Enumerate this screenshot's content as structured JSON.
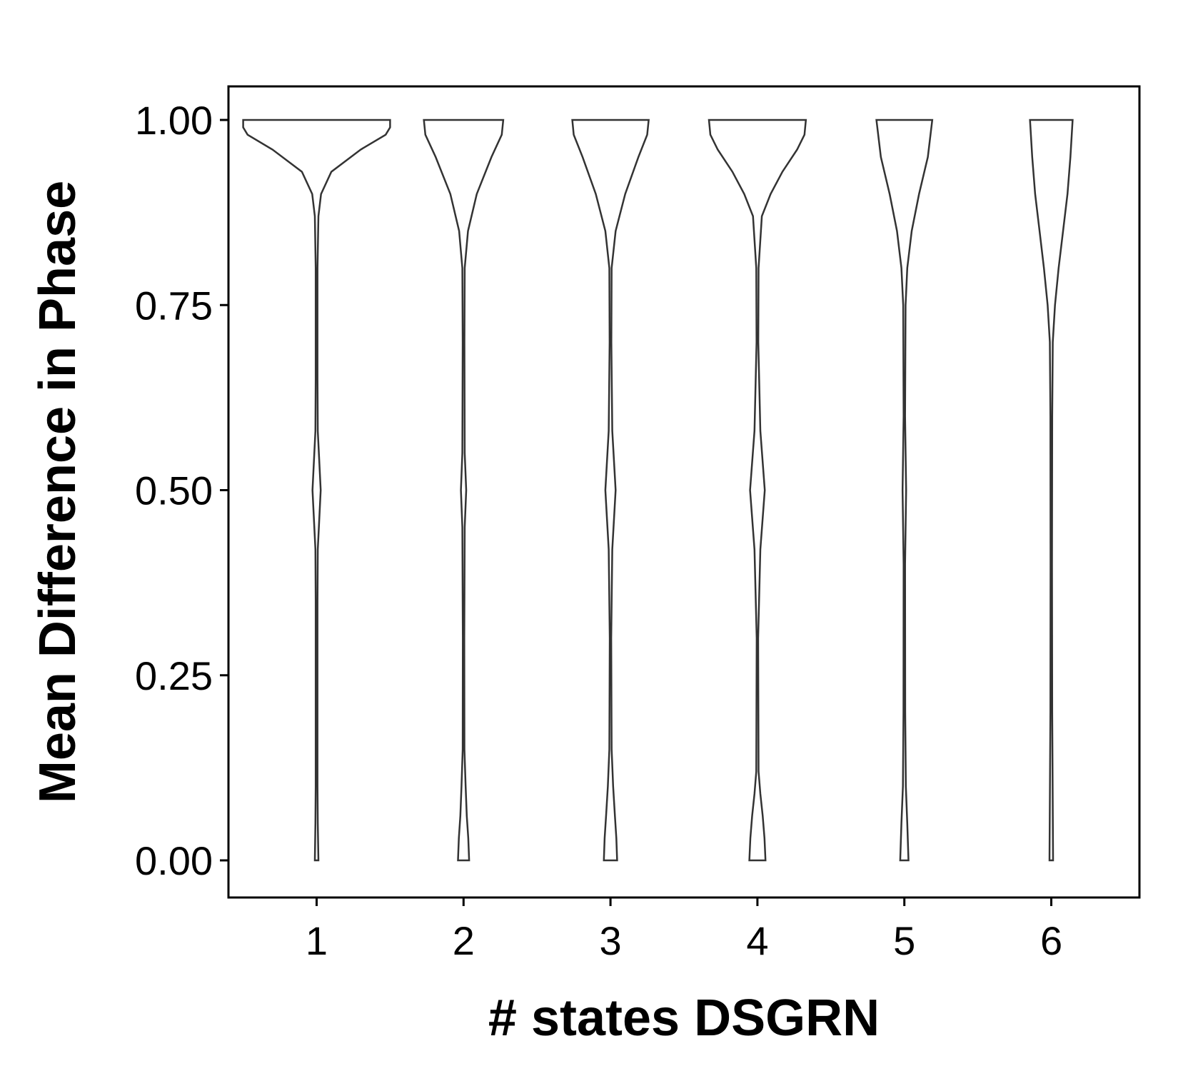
{
  "chart_data": {
    "type": "violin",
    "title": "",
    "xlabel": "# states DSGRN",
    "ylabel": "Mean Difference in Phase",
    "categories": [
      "1",
      "2",
      "3",
      "4",
      "5",
      "6"
    ],
    "ylim": [
      -0.05,
      1.05
    ],
    "yticks": [
      0.0,
      0.25,
      0.5,
      0.75,
      1.0
    ],
    "ytick_labels": [
      "0.00",
      "0.25",
      "0.50",
      "0.75",
      "1.00"
    ],
    "grid": false,
    "legend": "none",
    "colors": {
      "outline": "#333333",
      "fill": "#ffffff",
      "axis": "#000000"
    },
    "violins": [
      {
        "category": "1",
        "density_profile": [
          [
            0.0,
            0.012
          ],
          [
            0.05,
            0.008
          ],
          [
            0.1,
            0.006
          ],
          [
            0.2,
            0.006
          ],
          [
            0.35,
            0.006
          ],
          [
            0.42,
            0.008
          ],
          [
            0.5,
            0.028
          ],
          [
            0.58,
            0.008
          ],
          [
            0.65,
            0.006
          ],
          [
            0.8,
            0.006
          ],
          [
            0.87,
            0.012
          ],
          [
            0.9,
            0.03
          ],
          [
            0.93,
            0.1
          ],
          [
            0.96,
            0.3
          ],
          [
            0.98,
            0.47
          ],
          [
            0.99,
            0.5
          ],
          [
            1.0,
            0.5
          ]
        ]
      },
      {
        "category": "2",
        "density_profile": [
          [
            0.0,
            0.038
          ],
          [
            0.03,
            0.032
          ],
          [
            0.06,
            0.022
          ],
          [
            0.1,
            0.014
          ],
          [
            0.15,
            0.006
          ],
          [
            0.3,
            0.005
          ],
          [
            0.45,
            0.008
          ],
          [
            0.5,
            0.018
          ],
          [
            0.55,
            0.008
          ],
          [
            0.7,
            0.006
          ],
          [
            0.8,
            0.008
          ],
          [
            0.85,
            0.03
          ],
          [
            0.9,
            0.09
          ],
          [
            0.95,
            0.19
          ],
          [
            0.98,
            0.26
          ],
          [
            1.0,
            0.27
          ]
        ]
      },
      {
        "category": "3",
        "density_profile": [
          [
            0.0,
            0.045
          ],
          [
            0.03,
            0.04
          ],
          [
            0.06,
            0.03
          ],
          [
            0.1,
            0.018
          ],
          [
            0.15,
            0.008
          ],
          [
            0.3,
            0.005
          ],
          [
            0.42,
            0.012
          ],
          [
            0.5,
            0.035
          ],
          [
            0.58,
            0.012
          ],
          [
            0.7,
            0.006
          ],
          [
            0.8,
            0.008
          ],
          [
            0.85,
            0.035
          ],
          [
            0.9,
            0.1
          ],
          [
            0.95,
            0.19
          ],
          [
            0.98,
            0.25
          ],
          [
            1.0,
            0.26
          ]
        ]
      },
      {
        "category": "4",
        "density_profile": [
          [
            0.0,
            0.055
          ],
          [
            0.03,
            0.048
          ],
          [
            0.06,
            0.036
          ],
          [
            0.09,
            0.02
          ],
          [
            0.12,
            0.008
          ],
          [
            0.3,
            0.005
          ],
          [
            0.42,
            0.02
          ],
          [
            0.5,
            0.05
          ],
          [
            0.58,
            0.02
          ],
          [
            0.7,
            0.006
          ],
          [
            0.8,
            0.008
          ],
          [
            0.87,
            0.03
          ],
          [
            0.9,
            0.09
          ],
          [
            0.93,
            0.17
          ],
          [
            0.96,
            0.27
          ],
          [
            0.98,
            0.32
          ],
          [
            1.0,
            0.33
          ]
        ]
      },
      {
        "category": "5",
        "density_profile": [
          [
            0.0,
            0.028
          ],
          [
            0.05,
            0.02
          ],
          [
            0.1,
            0.01
          ],
          [
            0.2,
            0.006
          ],
          [
            0.4,
            0.005
          ],
          [
            0.5,
            0.012
          ],
          [
            0.6,
            0.005
          ],
          [
            0.75,
            0.008
          ],
          [
            0.8,
            0.02
          ],
          [
            0.85,
            0.05
          ],
          [
            0.9,
            0.1
          ],
          [
            0.95,
            0.16
          ],
          [
            1.0,
            0.19
          ]
        ]
      },
      {
        "category": "6",
        "density_profile": [
          [
            0.0,
            0.012
          ],
          [
            0.2,
            0.006
          ],
          [
            0.4,
            0.005
          ],
          [
            0.6,
            0.006
          ],
          [
            0.7,
            0.01
          ],
          [
            0.75,
            0.025
          ],
          [
            0.8,
            0.05
          ],
          [
            0.85,
            0.08
          ],
          [
            0.9,
            0.11
          ],
          [
            0.95,
            0.13
          ],
          [
            1.0,
            0.145
          ]
        ]
      }
    ]
  }
}
